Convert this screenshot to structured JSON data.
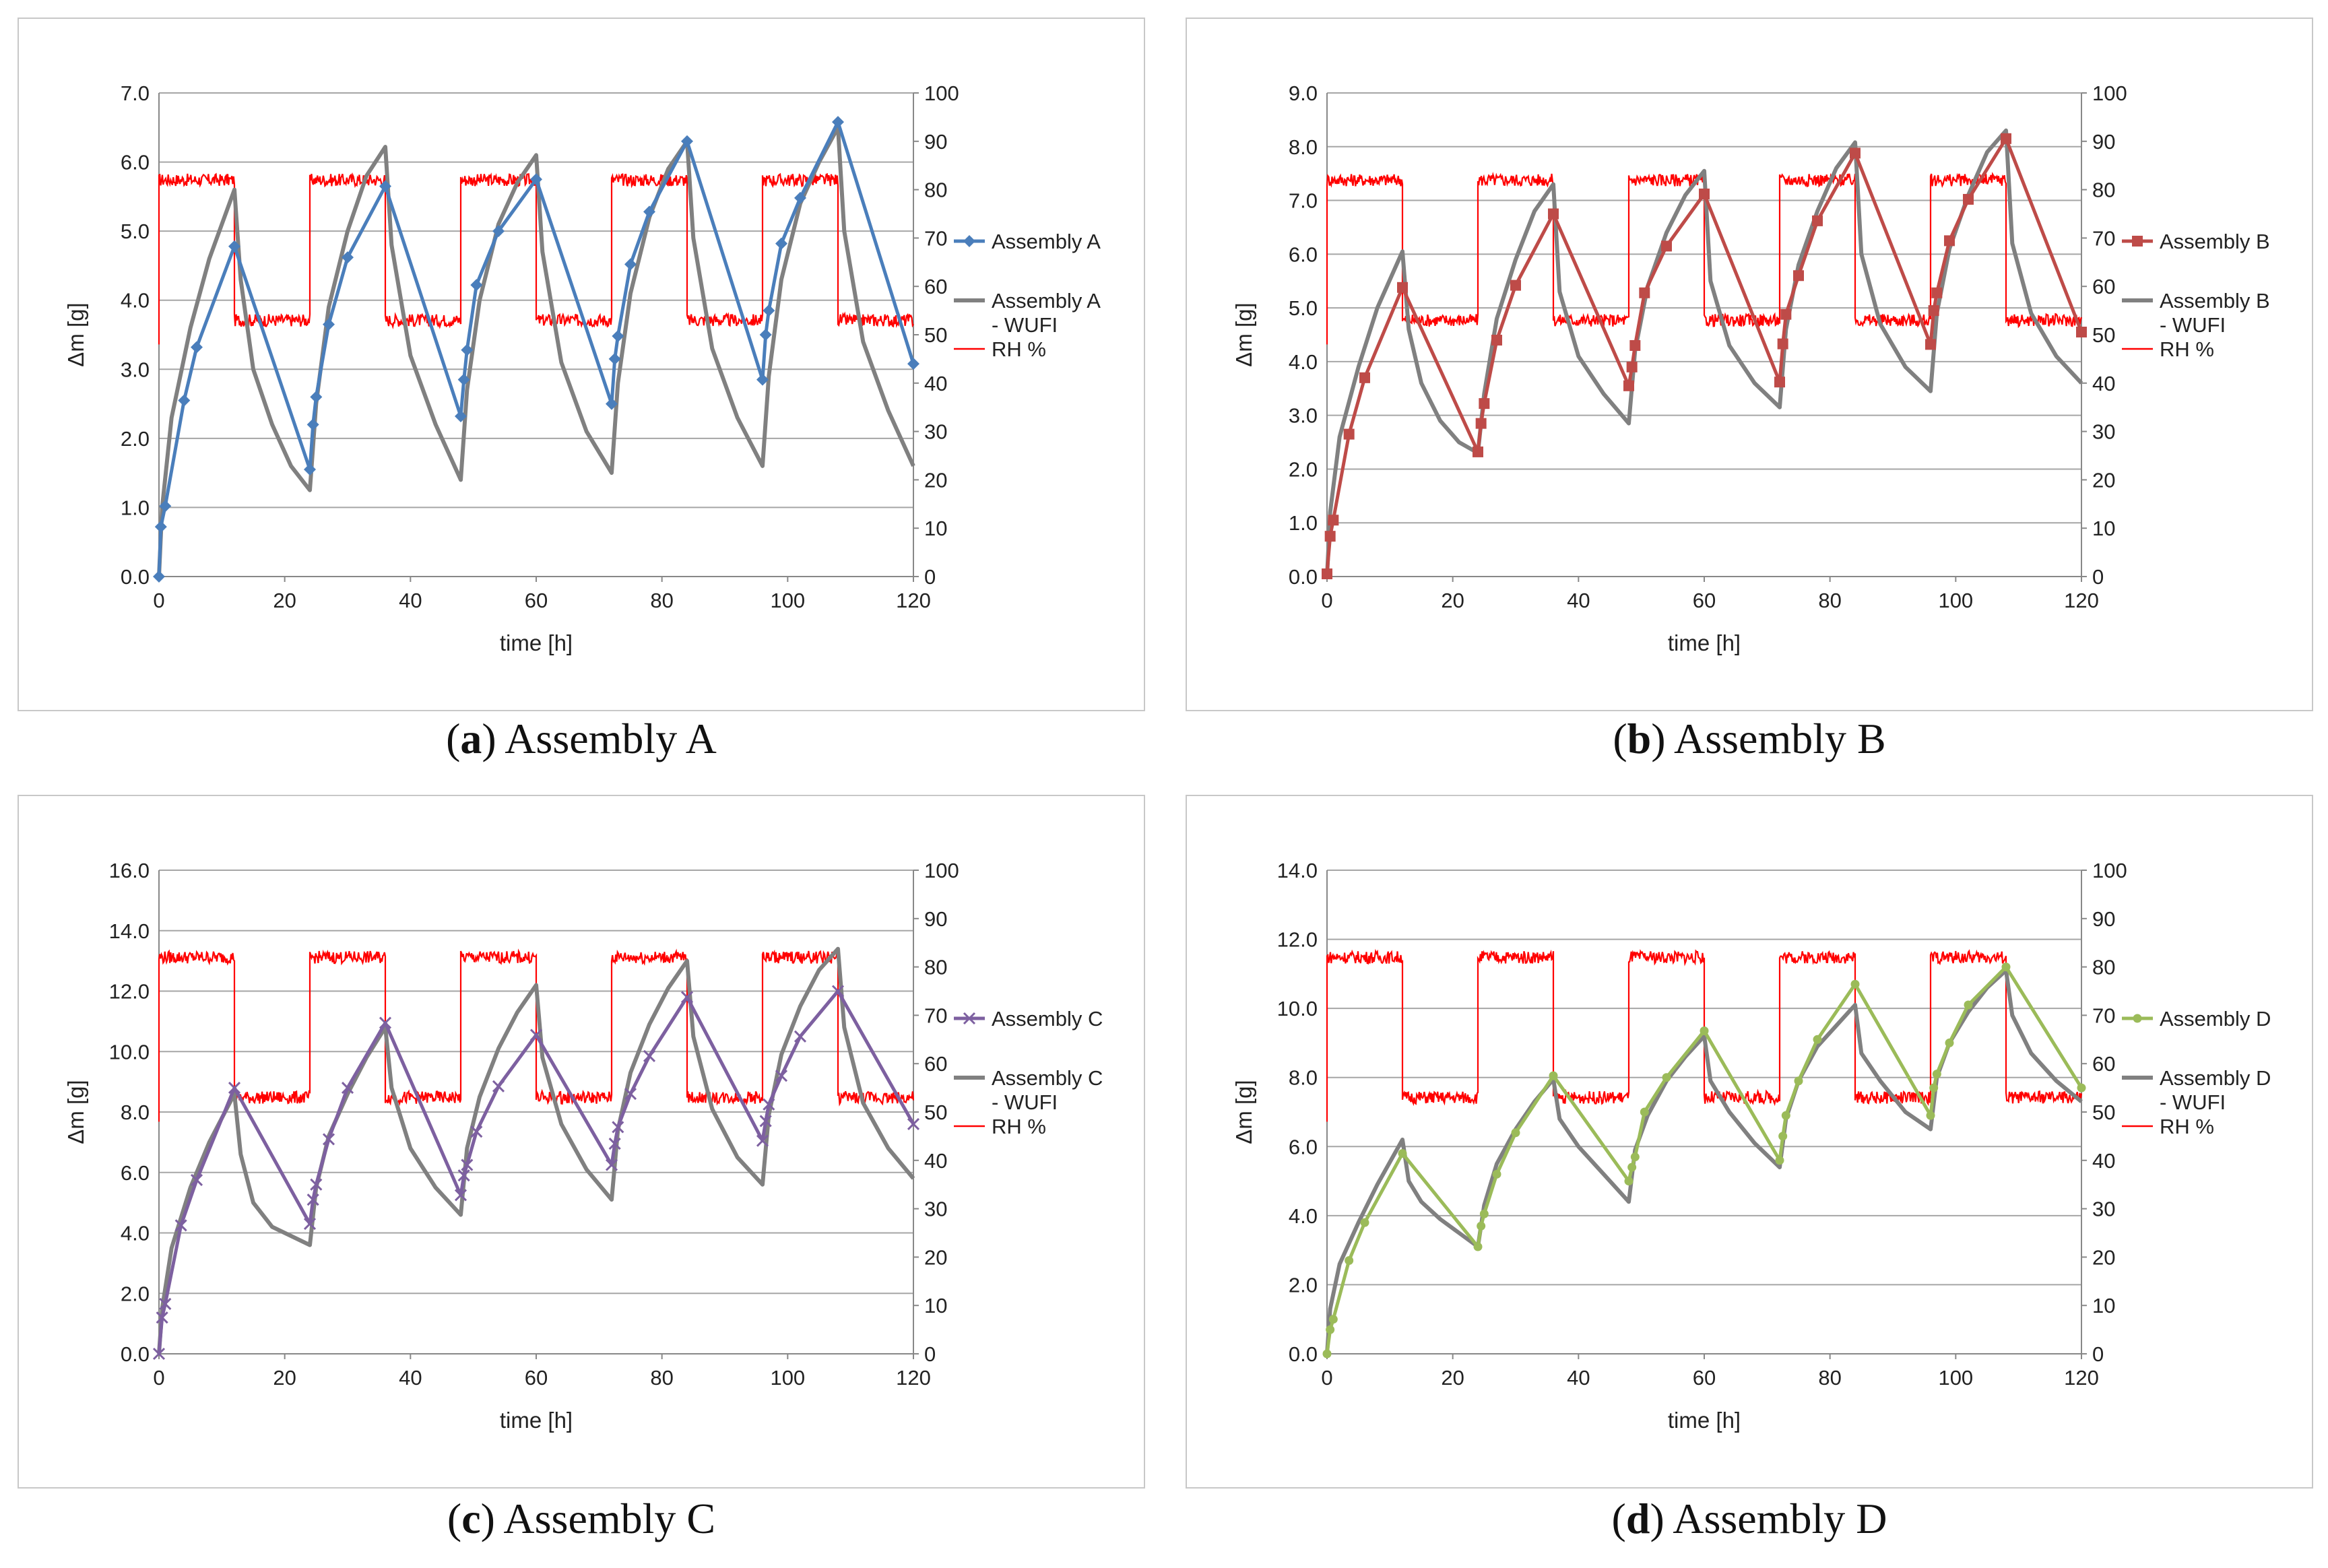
{
  "colors": {
    "gray": "#808080",
    "rh": "#ff0000",
    "grid": "#a6a6a6"
  },
  "captions": [
    {
      "letter": "a",
      "text": "Assembly A"
    },
    {
      "letter": "b",
      "text": "Assembly B"
    },
    {
      "letter": "c",
      "text": "Assembly C"
    },
    {
      "letter": "d",
      "text": "Assembly D"
    }
  ],
  "chart_data": [
    {
      "type": "line",
      "xlabel": "time  [h]",
      "ylabel": "Δm [g]",
      "xlim": [
        0,
        120
      ],
      "xticks": [
        0,
        20,
        40,
        60,
        80,
        100,
        120
      ],
      "ylim": [
        0,
        7
      ],
      "yticks": [
        "0.0",
        "1.0",
        "2.0",
        "3.0",
        "4.0",
        "5.0",
        "6.0",
        "7.0"
      ],
      "y2lim": [
        0,
        100
      ],
      "y2ticks": [
        "0",
        "10",
        "20",
        "30",
        "40",
        "50",
        "60",
        "70",
        "80",
        "90",
        "100"
      ],
      "rh": {
        "high": 82,
        "low": 53
      },
      "legend": {
        "measured": "Assembly A",
        "wufi1": "Assembly A",
        "wufi2": "- WUFI",
        "rh": "RH %"
      },
      "series": [
        {
          "name": "Assembly A",
          "color": "#4a7ebb",
          "marker": "diamond",
          "x": [
            0,
            0.3,
            1,
            4,
            6,
            12,
            24,
            24.5,
            25,
            27,
            30,
            36,
            48,
            48.5,
            49,
            50.5,
            54,
            60,
            72,
            72.5,
            73,
            75,
            78,
            84,
            96,
            96.5,
            97,
            99,
            102,
            108,
            120
          ],
          "y": [
            0.0,
            0.72,
            1.02,
            2.55,
            3.32,
            4.78,
            1.55,
            2.2,
            2.6,
            3.65,
            4.62,
            5.65,
            2.32,
            2.85,
            3.28,
            4.22,
            5.0,
            5.75,
            2.5,
            3.15,
            3.48,
            4.52,
            5.28,
            6.3,
            2.85,
            3.5,
            3.85,
            4.82,
            5.48,
            6.58,
            3.08
          ]
        },
        {
          "name": "Assembly A - WUFI",
          "color": "#808080",
          "marker": "none",
          "x": [
            0,
            0.5,
            2,
            5,
            8,
            12,
            13,
            15,
            18,
            21,
            24,
            25,
            27,
            30,
            33,
            36,
            37,
            40,
            44,
            48,
            49,
            51,
            54,
            57,
            60,
            61,
            64,
            68,
            72,
            73,
            75,
            78,
            81,
            84,
            85,
            88,
            92,
            96,
            97,
            99,
            102,
            105,
            108,
            109,
            112,
            116,
            120
          ],
          "y": [
            0,
            1.0,
            2.3,
            3.6,
            4.6,
            5.6,
            4.3,
            3.0,
            2.2,
            1.6,
            1.25,
            2.5,
            3.9,
            5.0,
            5.8,
            6.22,
            4.8,
            3.2,
            2.2,
            1.4,
            2.7,
            4.0,
            5.1,
            5.7,
            6.1,
            4.7,
            3.1,
            2.1,
            1.5,
            2.8,
            4.1,
            5.2,
            5.9,
            6.3,
            4.9,
            3.3,
            2.3,
            1.6,
            2.9,
            4.3,
            5.4,
            6.0,
            6.5,
            5.0,
            3.4,
            2.4,
            1.6
          ]
        }
      ]
    },
    {
      "type": "line",
      "xlabel": "time  [h]",
      "ylabel": "Δm [g]",
      "xlim": [
        0,
        120
      ],
      "xticks": [
        0,
        20,
        40,
        60,
        80,
        100,
        120
      ],
      "ylim": [
        0,
        9
      ],
      "yticks": [
        "0.0",
        "1.0",
        "2.0",
        "3.0",
        "4.0",
        "5.0",
        "6.0",
        "7.0",
        "8.0",
        "9.0"
      ],
      "y2lim": [
        0,
        100
      ],
      "y2ticks": [
        "0",
        "10",
        "20",
        "30",
        "40",
        "50",
        "60",
        "70",
        "80",
        "90",
        "100"
      ],
      "rh": {
        "high": 82,
        "low": 53
      },
      "legend": {
        "measured": "Assembly B",
        "wufi1": "Assembly B",
        "wufi2": "- WUFI",
        "rh": "RH %"
      },
      "series": [
        {
          "name": "Assembly B",
          "color": "#be4b48",
          "marker": "square",
          "x": [
            0,
            0.5,
            1,
            3.5,
            6,
            12,
            24,
            24.5,
            25,
            27,
            30,
            36,
            48,
            48.5,
            49,
            50.5,
            54,
            60,
            72,
            72.5,
            73,
            75,
            78,
            84,
            96,
            96.5,
            97,
            99,
            102,
            108,
            120
          ],
          "y": [
            0.05,
            0.75,
            1.05,
            2.65,
            3.7,
            5.38,
            2.32,
            2.85,
            3.22,
            4.4,
            5.42,
            6.75,
            3.55,
            3.9,
            4.3,
            5.28,
            6.15,
            7.12,
            3.62,
            4.33,
            4.88,
            5.6,
            6.62,
            7.88,
            4.32,
            4.95,
            5.28,
            6.25,
            7.02,
            8.15,
            4.55
          ]
        },
        {
          "name": "Assembly B - WUFI",
          "color": "#808080",
          "marker": "none",
          "x": [
            0,
            0.5,
            2,
            5,
            8,
            12,
            13,
            15,
            18,
            21,
            24,
            25,
            27,
            30,
            33,
            36,
            37,
            40,
            44,
            48,
            49,
            51,
            54,
            57,
            60,
            61,
            64,
            68,
            72,
            73,
            75,
            78,
            81,
            84,
            85,
            88,
            92,
            96,
            97,
            99,
            102,
            105,
            108,
            109,
            112,
            116,
            120
          ],
          "y": [
            0,
            1.2,
            2.6,
            3.9,
            5.0,
            6.05,
            4.6,
            3.6,
            2.9,
            2.5,
            2.3,
            3.4,
            4.8,
            5.9,
            6.8,
            7.3,
            5.3,
            4.1,
            3.4,
            2.85,
            4.2,
            5.4,
            6.4,
            7.1,
            7.55,
            5.5,
            4.3,
            3.6,
            3.15,
            4.6,
            5.8,
            6.8,
            7.6,
            8.08,
            6.0,
            4.7,
            3.9,
            3.45,
            4.9,
            6.1,
            7.1,
            7.9,
            8.3,
            6.2,
            4.9,
            4.1,
            3.6
          ]
        }
      ]
    },
    {
      "type": "line",
      "xlabel": "time [h]",
      "ylabel": "Δm [g]",
      "xlim": [
        0,
        120
      ],
      "xticks": [
        0,
        20,
        40,
        60,
        80,
        100,
        120
      ],
      "ylim": [
        0,
        16
      ],
      "yticks": [
        "0.0",
        "2.0",
        "4.0",
        "6.0",
        "8.0",
        "10.0",
        "12.0",
        "14.0",
        "16.0"
      ],
      "y2lim": [
        0,
        100
      ],
      "y2ticks": [
        "0",
        "10",
        "20",
        "30",
        "40",
        "50",
        "60",
        "70",
        "80",
        "90",
        "100"
      ],
      "rh": {
        "high": 82,
        "low": 53
      },
      "legend": {
        "measured": "Assembly C",
        "wufi1": "Assembly C",
        "wufi2": "- WUFI",
        "rh": "RH %"
      },
      "series": [
        {
          "name": "Assembly C",
          "color": "#7d60a0",
          "marker": "x",
          "x": [
            0,
            0.5,
            1,
            3.5,
            6,
            12,
            24,
            24.5,
            25,
            27,
            30,
            36,
            48,
            48.5,
            49,
            50.5,
            54,
            60,
            72,
            72.5,
            73,
            75,
            78,
            84,
            96,
            96.5,
            97,
            99,
            102,
            108,
            120
          ],
          "y": [
            0.0,
            1.2,
            1.65,
            4.25,
            5.75,
            8.8,
            4.3,
            5.1,
            5.6,
            7.1,
            8.8,
            10.95,
            5.25,
            5.9,
            6.25,
            7.35,
            8.85,
            10.55,
            6.25,
            6.95,
            7.5,
            8.6,
            9.85,
            11.8,
            7.05,
            7.7,
            8.25,
            9.2,
            10.5,
            12.0,
            7.6
          ]
        },
        {
          "name": "Assembly C - WUFI",
          "color": "#808080",
          "marker": "none",
          "x": [
            0,
            0.5,
            2,
            5,
            8,
            12,
            13,
            15,
            18,
            21,
            24,
            25,
            27,
            30,
            33,
            36,
            37,
            40,
            44,
            48,
            49,
            51,
            54,
            57,
            60,
            61,
            64,
            68,
            72,
            73,
            75,
            78,
            81,
            84,
            85,
            88,
            92,
            96,
            97,
            99,
            102,
            105,
            108,
            109,
            112,
            116,
            120
          ],
          "y": [
            0,
            1.5,
            3.5,
            5.5,
            7.0,
            8.6,
            6.6,
            5.0,
            4.2,
            3.9,
            3.6,
            5.5,
            7.2,
            8.6,
            9.8,
            10.8,
            8.8,
            6.8,
            5.5,
            4.6,
            6.8,
            8.5,
            10.1,
            11.3,
            12.2,
            9.8,
            7.6,
            6.1,
            5.1,
            7.4,
            9.3,
            10.9,
            12.1,
            13.0,
            10.5,
            8.1,
            6.5,
            5.6,
            7.9,
            9.9,
            11.5,
            12.7,
            13.4,
            10.8,
            8.3,
            6.8,
            5.8
          ]
        }
      ]
    },
    {
      "type": "line",
      "xlabel": "time  [h]",
      "ylabel": "Δm [g]",
      "xlim": [
        0,
        120
      ],
      "xticks": [
        0,
        20,
        40,
        60,
        80,
        100,
        120
      ],
      "ylim": [
        0,
        14
      ],
      "yticks": [
        "0.0",
        "2.0",
        "4.0",
        "6.0",
        "8.0",
        "10.0",
        "12.0",
        "14.0"
      ],
      "y2lim": [
        0,
        100
      ],
      "y2ticks": [
        "0",
        "10",
        "20",
        "30",
        "40",
        "50",
        "60",
        "70",
        "80",
        "90",
        "100"
      ],
      "rh": {
        "high": 82,
        "low": 53
      },
      "legend": {
        "measured": "Assembly D",
        "wufi1": "Assembly D",
        "wufi2": "- WUFI",
        "rh": "RH %"
      },
      "series": [
        {
          "name": "Assembly D",
          "color": "#9bbb59",
          "marker": "circle",
          "x": [
            0,
            0.5,
            1,
            3.5,
            6,
            12,
            24,
            24.5,
            25,
            27,
            30,
            36,
            48,
            48.5,
            49,
            50.5,
            54,
            60,
            72,
            72.5,
            73,
            75,
            78,
            84,
            96,
            96.5,
            97,
            99,
            102,
            108,
            120
          ],
          "y": [
            0.0,
            0.7,
            1.0,
            2.7,
            3.8,
            5.8,
            3.1,
            3.7,
            4.05,
            5.2,
            6.4,
            8.05,
            5.0,
            5.4,
            5.7,
            7.0,
            8.0,
            9.35,
            5.6,
            6.3,
            6.9,
            7.9,
            9.1,
            10.7,
            6.9,
            7.7,
            8.1,
            9.0,
            10.1,
            11.2,
            7.7
          ]
        },
        {
          "name": "Assembly D - WUFI",
          "color": "#808080",
          "marker": "none",
          "x": [
            0,
            0.5,
            2,
            5,
            8,
            12,
            13,
            15,
            18,
            21,
            24,
            25,
            27,
            30,
            33,
            36,
            37,
            40,
            44,
            48,
            49,
            51,
            54,
            57,
            60,
            61,
            64,
            68,
            72,
            73,
            75,
            78,
            81,
            84,
            85,
            88,
            92,
            96,
            97,
            99,
            102,
            105,
            108,
            109,
            112,
            116,
            120
          ],
          "y": [
            0,
            1.3,
            2.6,
            3.8,
            4.9,
            6.2,
            5.0,
            4.4,
            3.9,
            3.5,
            3.1,
            4.3,
            5.5,
            6.5,
            7.3,
            7.95,
            6.8,
            6.0,
            5.2,
            4.4,
            5.9,
            6.9,
            7.9,
            8.6,
            9.2,
            7.9,
            7.0,
            6.1,
            5.4,
            6.8,
            7.9,
            8.9,
            9.5,
            10.1,
            8.7,
            7.9,
            7.0,
            6.5,
            8.0,
            9.0,
            9.9,
            10.6,
            11.1,
            9.8,
            8.7,
            7.9,
            7.3
          ]
        }
      ]
    }
  ]
}
